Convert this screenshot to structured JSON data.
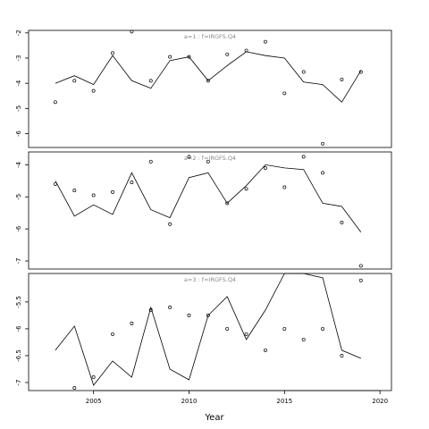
{
  "chart_data": {
    "type": "line",
    "xlabel": "Year",
    "xlim": [
      2001.6,
      2020.6
    ],
    "xticks": [
      2005,
      2010,
      2015,
      2020
    ],
    "panels": [
      {
        "title": "a=1  :  f=IRGFS.Q4",
        "ylim": [
          -6.55,
          -1.9
        ],
        "yticks": [
          -6,
          -5,
          -4,
          -3,
          -2
        ],
        "series": [
          {
            "kind": "line",
            "x": [
              2003,
              2004,
              2005,
              2006,
              2007,
              2008,
              2009,
              2010,
              2011,
              2012,
              2013,
              2014,
              2015,
              2016,
              2017,
              2018,
              2019
            ],
            "values": [
              -4.0,
              -3.7,
              -4.05,
              -2.9,
              -3.9,
              -4.2,
              -3.1,
              -2.95,
              -3.9,
              -3.3,
              -2.75,
              -2.9,
              -3.0,
              -3.95,
              -4.05,
              -4.75,
              -3.5
            ]
          },
          {
            "kind": "scatter",
            "x": [
              2003,
              2004,
              2005,
              2006,
              2007,
              2008,
              2009,
              2010,
              2011,
              2012,
              2013,
              2014,
              2015,
              2016,
              2017,
              2018,
              2019
            ],
            "values": [
              -4.75,
              -3.9,
              -4.3,
              -2.8,
              -1.95,
              -3.9,
              -2.95,
              -2.95,
              -3.9,
              -2.85,
              -2.7,
              -2.35,
              -4.4,
              -3.55,
              -6.4,
              -3.85,
              -3.55
            ]
          }
        ]
      },
      {
        "title": "a=2  :  f=IRGFS.Q4",
        "ylim": [
          -7.25,
          -3.6
        ],
        "yticks": [
          -7,
          -6,
          -5,
          -4
        ],
        "series": [
          {
            "kind": "line",
            "x": [
              2003,
              2004,
              2005,
              2006,
              2007,
              2008,
              2009,
              2010,
              2011,
              2012,
              2013,
              2014,
              2015,
              2016,
              2017,
              2018,
              2019
            ],
            "values": [
              -4.5,
              -5.6,
              -5.25,
              -5.55,
              -4.25,
              -5.4,
              -5.65,
              -4.4,
              -4.25,
              -5.2,
              -4.65,
              -4.0,
              -4.1,
              -4.15,
              -5.2,
              -5.3,
              -6.1
            ]
          },
          {
            "kind": "scatter",
            "x": [
              2003,
              2004,
              2005,
              2006,
              2007,
              2008,
              2009,
              2010,
              2011,
              2012,
              2013,
              2014,
              2015,
              2016,
              2017,
              2018,
              2019
            ],
            "values": [
              -4.6,
              -4.8,
              -4.95,
              -4.85,
              -4.55,
              -3.9,
              -5.85,
              -3.75,
              -3.9,
              -5.2,
              -4.75,
              -4.1,
              -4.7,
              -3.75,
              -4.25,
              -5.8,
              -7.15
            ]
          }
        ]
      },
      {
        "title": "a=3  :  f=IRGFS.Q4",
        "ylim": [
          -7.15,
          -4.97
        ],
        "yticks": [
          -7,
          -6.5,
          -6,
          -5.5
        ],
        "series": [
          {
            "kind": "line",
            "x": [
              2003,
              2004,
              2005,
              2006,
              2007,
              2008,
              2009,
              2010,
              2011,
              2012,
              2013,
              2014,
              2015,
              2016,
              2017,
              2018,
              2019
            ],
            "values": [
              -6.4,
              -5.95,
              -7.05,
              -6.6,
              -6.9,
              -5.6,
              -6.75,
              -6.95,
              -5.75,
              -5.4,
              -6.2,
              -5.65,
              -4.95,
              -4.95,
              -5.05,
              -6.4,
              -6.55
            ]
          },
          {
            "kind": "scatter",
            "x": [
              2003,
              2004,
              2005,
              2006,
              2007,
              2008,
              2009,
              2010,
              2011,
              2012,
              2013,
              2014,
              2015,
              2016,
              2017,
              2018,
              2019
            ],
            "values": [
              -7.25,
              -7.1,
              -6.9,
              -6.1,
              -5.9,
              -5.65,
              -5.6,
              -5.75,
              -5.75,
              -6.0,
              -6.1,
              -6.4,
              -6.0,
              -6.2,
              -6.0,
              -6.5,
              -5.1
            ]
          }
        ]
      }
    ]
  }
}
